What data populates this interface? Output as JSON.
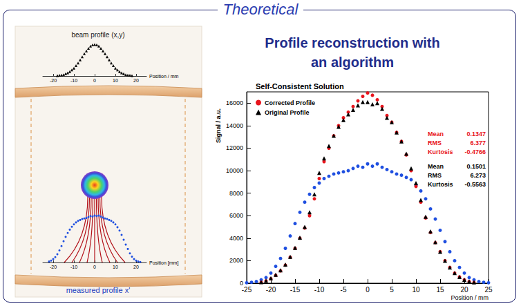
{
  "header": {
    "title": "Theoretical"
  },
  "heading": "Profile reconstruction with an algorithm",
  "chart_data": [
    {
      "type": "scatter",
      "title": "beam profile (x,y)",
      "xlabel": "Position / mm",
      "xlim": [
        -25,
        25
      ],
      "xticks": [
        -20,
        -10,
        0,
        10,
        20
      ],
      "ylim": [
        0,
        110
      ],
      "tick_labels": "x",
      "grid": false,
      "series": [
        {
          "color": "#000000",
          "marker": "triangle",
          "x": [
            -18,
            -17,
            -16,
            -15,
            -14,
            -13,
            -12,
            -11,
            -10,
            -9,
            -8,
            -7,
            -6,
            -5,
            -4,
            -3,
            -2,
            -1,
            0,
            1,
            2,
            3,
            4,
            5,
            6,
            7,
            8,
            9,
            10,
            11,
            12,
            13,
            14,
            15,
            16,
            17,
            18
          ],
          "values": [
            1,
            2,
            3,
            4,
            7,
            10,
            14,
            19,
            25,
            33,
            41,
            51,
            61,
            71,
            80,
            88,
            95,
            99,
            100,
            99,
            95,
            88,
            80,
            71,
            61,
            51,
            41,
            33,
            25,
            19,
            14,
            10,
            7,
            4,
            3,
            2,
            1
          ]
        }
      ]
    },
    {
      "type": "scatter",
      "title": "measured profile x'",
      "xlabel": "Position [mm]",
      "xlim": [
        -25,
        25
      ],
      "xticks": [
        -20,
        -10,
        0,
        10,
        20
      ],
      "ylim": [
        0,
        100
      ],
      "tick_labels": "x",
      "grid": false,
      "series": [
        {
          "color": "#1f4fe0",
          "marker": "circle",
          "x": [
            -22,
            -21,
            -20,
            -19,
            -18,
            -17,
            -16,
            -15,
            -14,
            -13,
            -12,
            -11,
            -10,
            -9,
            -8,
            -7,
            -6,
            -5,
            -4,
            -3,
            -2,
            -1,
            0,
            1,
            2,
            3,
            4,
            5,
            6,
            7,
            8,
            9,
            10,
            11,
            12,
            13,
            14,
            15,
            16,
            17,
            18,
            19,
            20,
            21,
            22
          ],
          "values": [
            2,
            4,
            7,
            11,
            17,
            25,
            34,
            44,
            53,
            61,
            68,
            74,
            79,
            83,
            86,
            88,
            90,
            91,
            92,
            94,
            96,
            95,
            97,
            96,
            97,
            95,
            93,
            91,
            90,
            88,
            86,
            83,
            79,
            73,
            66,
            57,
            47,
            37,
            28,
            19,
            12,
            7,
            4,
            2,
            1
          ]
        }
      ]
    },
    {
      "type": "scatter",
      "title": "Self-Consistent Solution",
      "xlabel": "Position / mm",
      "ylabel": "Signal / a.u.",
      "xlim": [
        -25,
        25
      ],
      "xticks": [
        -25,
        -20,
        -15,
        -10,
        -5,
        0,
        5,
        10,
        15,
        20,
        25
      ],
      "ylim": [
        0,
        17000
      ],
      "yticks": [
        0,
        2000,
        4000,
        6000,
        8000,
        10000,
        12000,
        14000,
        16000
      ],
      "grid": false,
      "legend": "upper left",
      "series": [
        {
          "name": "Corrected Profile",
          "color": "#e8141c",
          "marker": "circle",
          "x": [
            -22,
            -21,
            -20,
            -19,
            -18,
            -17,
            -16,
            -15,
            -14,
            -13,
            -12,
            -11,
            -10,
            -9,
            -8,
            -7,
            -6,
            -5,
            -4,
            -3,
            -2,
            -1,
            0,
            1,
            2,
            3,
            4,
            5,
            6,
            7,
            8,
            9,
            10,
            11,
            12,
            13,
            14,
            15,
            16,
            17,
            18,
            19,
            20,
            21,
            22
          ],
          "values": [
            80,
            200,
            400,
            700,
            1100,
            1600,
            2300,
            3100,
            4000,
            4900,
            6000,
            7500,
            9300,
            10800,
            12000,
            13100,
            14000,
            14700,
            15200,
            15700,
            16200,
            16600,
            16900,
            16700,
            16300,
            15700,
            14900,
            14300,
            13400,
            12600,
            11400,
            10000,
            8600,
            7200,
            5800,
            4500,
            3600,
            2800,
            2000,
            1400,
            900,
            550,
            300,
            150,
            70
          ]
        },
        {
          "name": "Original Profile",
          "color": "#000000",
          "marker": "triangle",
          "x": [
            -22,
            -21,
            -20,
            -19,
            -18,
            -17,
            -16,
            -15,
            -14,
            -13,
            -12,
            -11,
            -10,
            -9,
            -8,
            -7,
            -6,
            -5,
            -4,
            -3,
            -2,
            -1,
            0,
            1,
            2,
            3,
            4,
            5,
            6,
            7,
            8,
            9,
            10,
            11,
            12,
            13,
            14,
            15,
            16,
            17,
            18,
            19,
            20,
            21,
            22
          ],
          "values": [
            90,
            220,
            450,
            750,
            1150,
            1650,
            2350,
            3150,
            4050,
            5000,
            6300,
            7900,
            9800,
            11100,
            12200,
            13100,
            13900,
            14500,
            15000,
            15400,
            15800,
            16100,
            16100,
            15900,
            16000,
            15500,
            14700,
            14300,
            13400,
            12600,
            11500,
            10200,
            8900,
            7400,
            5900,
            4600,
            3650,
            2800,
            2000,
            1400,
            900,
            550,
            300,
            150,
            70
          ]
        },
        {
          "color": "#1f4fe0",
          "marker": "circle",
          "x": [
            -25,
            -24,
            -23,
            -22,
            -21,
            -20,
            -19,
            -18,
            -17,
            -16,
            -15,
            -14,
            -13,
            -12,
            -11,
            -10,
            -9,
            -8,
            -7,
            -6,
            -5,
            -4,
            -3,
            -2,
            -1,
            0,
            1,
            2,
            3,
            4,
            5,
            6,
            7,
            8,
            9,
            10,
            11,
            12,
            13,
            14,
            15,
            16,
            17,
            18,
            19,
            20,
            21,
            22,
            23,
            24,
            25
          ],
          "values": [
            40,
            80,
            150,
            300,
            500,
            900,
            1500,
            2200,
            3100,
            4200,
            5300,
            6300,
            7200,
            7900,
            8500,
            8900,
            9300,
            9500,
            9700,
            9800,
            9900,
            10000,
            10200,
            10400,
            10300,
            10600,
            10400,
            10600,
            10300,
            10100,
            9900,
            9700,
            9600,
            9400,
            9200,
            8700,
            8200,
            7500,
            6600,
            5700,
            4700,
            3700,
            2800,
            2000,
            1400,
            900,
            500,
            300,
            150,
            80,
            40
          ]
        }
      ],
      "stats": [
        {
          "color": "#e8141c",
          "entries": [
            {
              "label": "Mean",
              "value": 0.1347
            },
            {
              "label": "RMS",
              "value": 6.377
            },
            {
              "label": "Kurtosis",
              "value": -0.4766
            }
          ]
        },
        {
          "color": "#000000",
          "entries": [
            {
              "label": "Mean",
              "value": 0.1501
            },
            {
              "label": "RMS",
              "value": 6.273
            },
            {
              "label": "Kurtosis",
              "value": -0.5563
            }
          ]
        }
      ]
    }
  ]
}
